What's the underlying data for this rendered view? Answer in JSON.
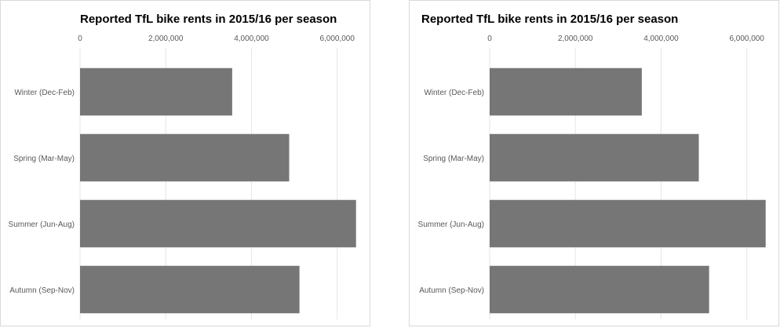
{
  "chart_data": [
    {
      "type": "bar",
      "orientation": "horizontal",
      "title": "Reported TfL bike rents in 2015/16 per season",
      "categories": [
        "Winter (Dec-Feb)",
        "Spring (Mar-May)",
        "Summer (Jun-Aug)",
        "Autumn (Sep-Nov)"
      ],
      "values": [
        3550000,
        4880000,
        6440000,
        5120000
      ],
      "xlim": [
        0,
        6500000
      ],
      "x_ticks": [
        0,
        2000000,
        4000000,
        6000000
      ],
      "x_tick_labels": [
        "0",
        "2,000,000",
        "4,000,000",
        "6,000,000"
      ],
      "xaxis_position": "top",
      "grid": true,
      "bar_color": "#767676",
      "grid_color": "#e6e6e6"
    },
    {
      "type": "bar",
      "orientation": "horizontal",
      "title": "Reported TfL bike rents in 2015/16 per season",
      "categories": [
        "Winter (Dec-Feb)",
        "Spring (Mar-May)",
        "Summer (Jun-Aug)",
        "Autumn (Sep-Nov)"
      ],
      "values": [
        3550000,
        4880000,
        6440000,
        5120000
      ],
      "xlim": [
        0,
        6500000
      ],
      "x_ticks": [
        0,
        2000000,
        4000000,
        6000000
      ],
      "x_tick_labels": [
        "0",
        "2,000,000",
        "4,000,000",
        "6,000,000"
      ],
      "xaxis_position": "top",
      "grid": true,
      "bar_color": "#767676",
      "grid_color": "#e6e6e6"
    }
  ]
}
